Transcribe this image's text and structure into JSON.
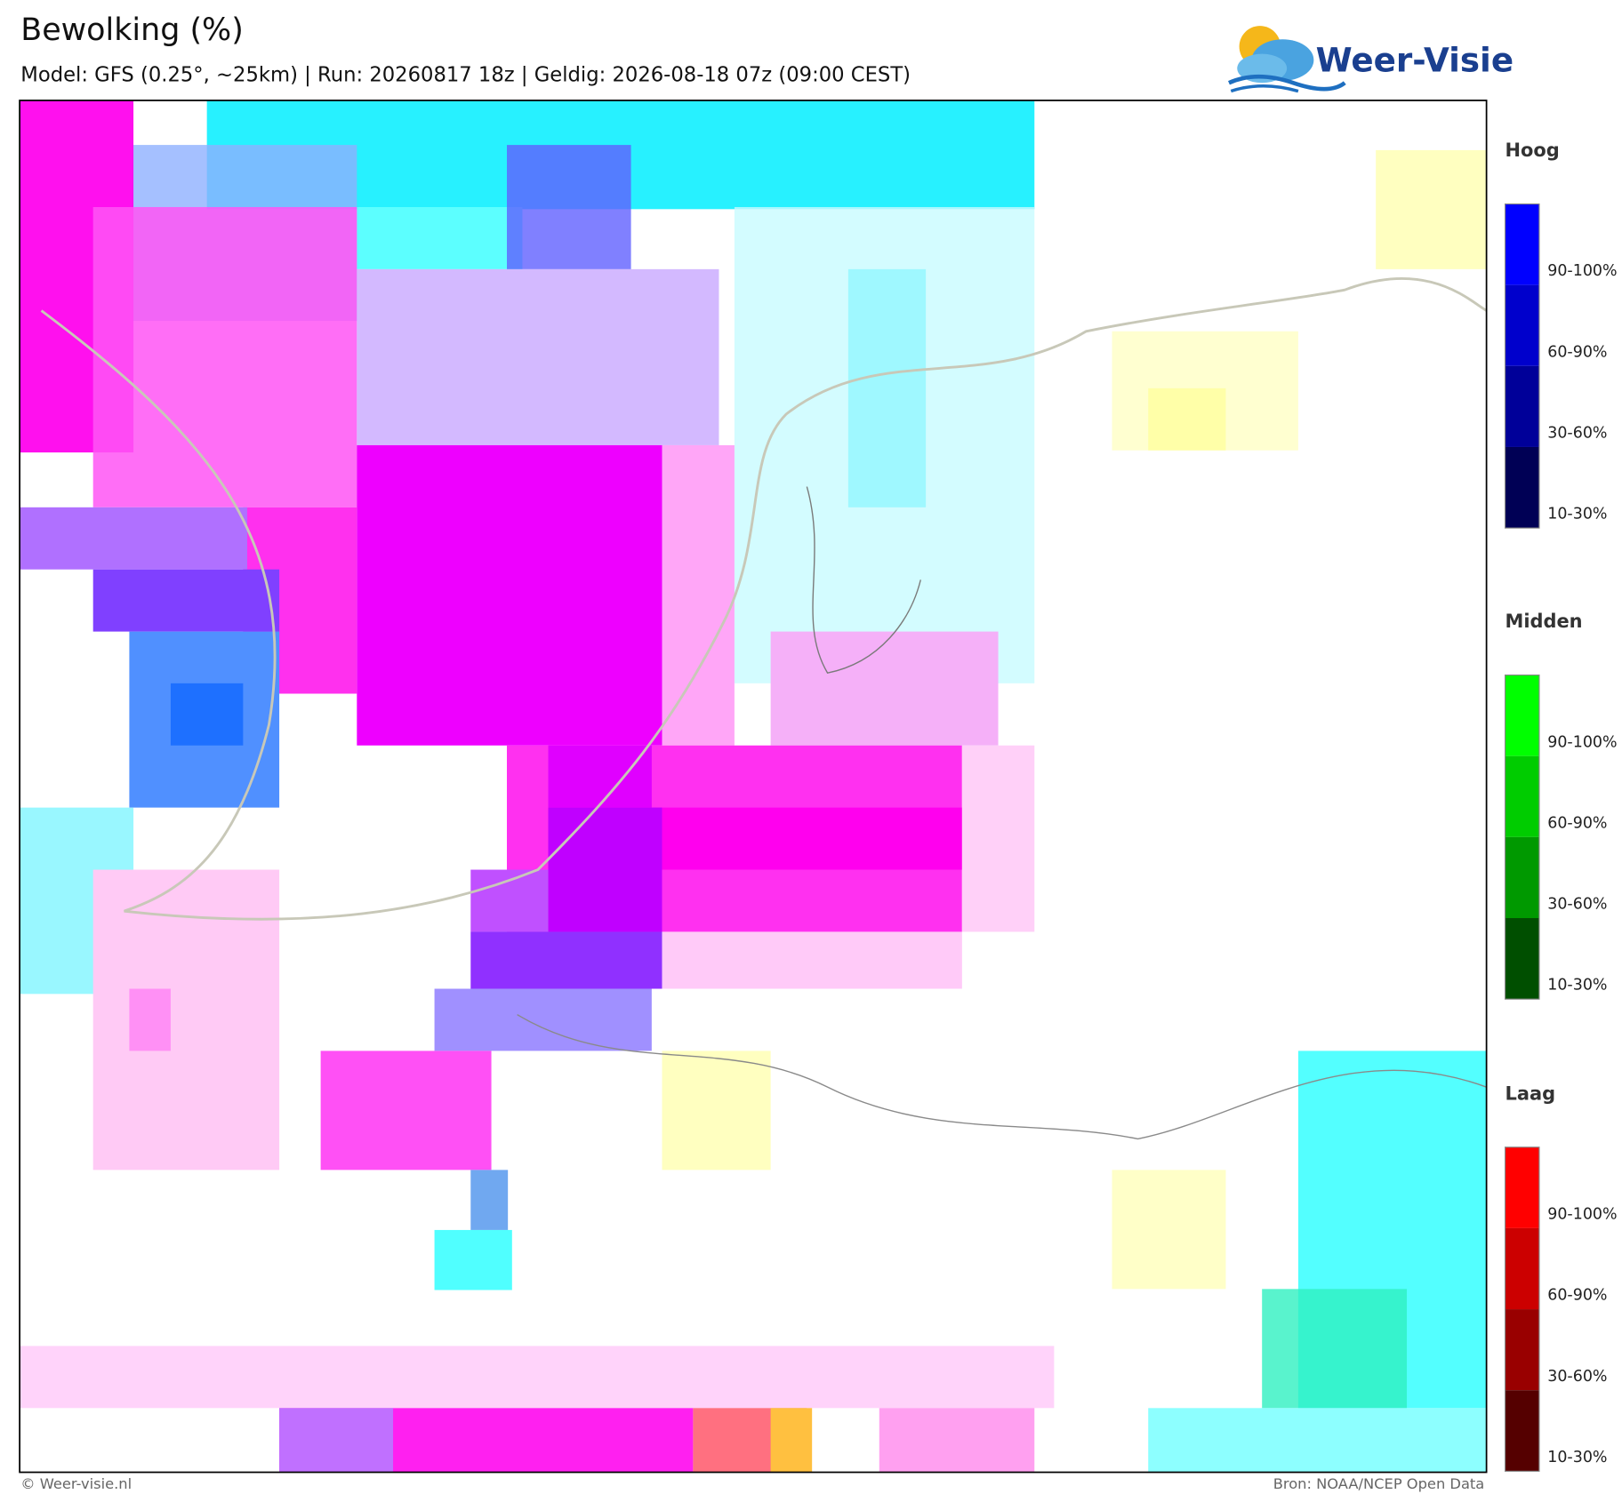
{
  "header": {
    "title": "Bewolking (%)",
    "subtitle": "Model: GFS (0.25°, ~25km)  |  Run: 20260817 18z  |  Geldig: 2026-08-18 07z (09:00 CEST)",
    "logo": "Weer-Visie"
  },
  "legend": [
    {
      "title": "Hoog",
      "items": [
        "90-100%",
        "60-90%",
        "30-60%",
        "10-30%"
      ]
    },
    {
      "title": "Midden",
      "items": [
        "90-100%",
        "60-90%",
        "30-60%",
        "10-30%"
      ]
    },
    {
      "title": "Laag",
      "items": [
        "90-100%",
        "60-90%",
        "30-60%",
        "10-30%"
      ]
    }
  ],
  "footer": {
    "left": "© Weer-visie.nl",
    "right": "Bron: NOAA/NCEP Open Data"
  }
}
